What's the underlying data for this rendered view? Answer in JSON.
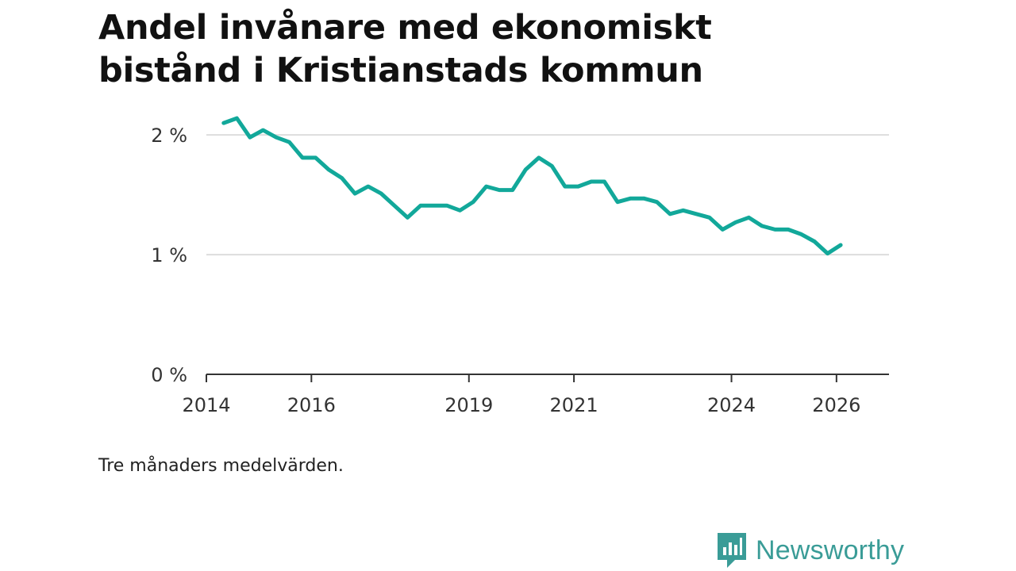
{
  "title_lines": [
    "Andel invånare med ekonomiskt",
    "bistånd i Kristianstads kommun"
  ],
  "note": "Tre månaders medelvärden.",
  "brand": {
    "name": "Newsworthy",
    "color": "#3a9c97",
    "logo_icon": "bar-chart-speech-bubble-icon"
  },
  "colors": {
    "line": "#12a89a",
    "grid": "#dddddd",
    "axis": "#333333"
  },
  "chart_data": {
    "type": "line",
    "title": "Andel invånare med ekonomiskt bistånd i Kristianstads kommun",
    "xlabel": "",
    "ylabel": "",
    "y_unit": "%",
    "ylim": [
      0,
      2.2
    ],
    "xlim": [
      2014.0,
      2027.0
    ],
    "yticks": [
      0,
      1,
      2
    ],
    "ytick_labels": [
      "0 %",
      "1 %",
      "2 %"
    ],
    "xticks": [
      2014,
      2016,
      2019,
      2021,
      2024,
      2026
    ],
    "xtick_labels": [
      "2014",
      "2016",
      "2019",
      "2021",
      "2024",
      "2026"
    ],
    "grid": true,
    "series": [
      {
        "name": "Andel invånare med ekonomiskt bistånd",
        "x": [
          2014.33,
          2014.58,
          2014.83,
          2015.08,
          2015.33,
          2015.58,
          2015.83,
          2016.08,
          2016.33,
          2016.58,
          2016.83,
          2017.08,
          2017.33,
          2017.58,
          2017.83,
          2018.08,
          2018.33,
          2018.58,
          2018.83,
          2019.08,
          2019.33,
          2019.58,
          2019.83,
          2020.08,
          2020.33,
          2020.58,
          2020.83,
          2021.08,
          2021.33,
          2021.58,
          2021.83,
          2022.08,
          2022.33,
          2022.58,
          2022.83,
          2023.08,
          2023.33,
          2023.58,
          2023.83,
          2024.08,
          2024.33,
          2024.58,
          2024.83,
          2025.08,
          2025.33,
          2025.58,
          2025.83,
          2026.08
        ],
        "values": [
          2.1,
          2.14,
          1.98,
          2.04,
          1.98,
          1.94,
          1.81,
          1.81,
          1.71,
          1.64,
          1.51,
          1.57,
          1.51,
          1.41,
          1.31,
          1.41,
          1.41,
          1.41,
          1.37,
          1.44,
          1.57,
          1.54,
          1.54,
          1.71,
          1.81,
          1.74,
          1.57,
          1.57,
          1.61,
          1.61,
          1.44,
          1.47,
          1.47,
          1.44,
          1.34,
          1.37,
          1.34,
          1.31,
          1.21,
          1.27,
          1.31,
          1.24,
          1.21,
          1.21,
          1.17,
          1.11,
          1.01,
          1.08
        ]
      }
    ]
  }
}
